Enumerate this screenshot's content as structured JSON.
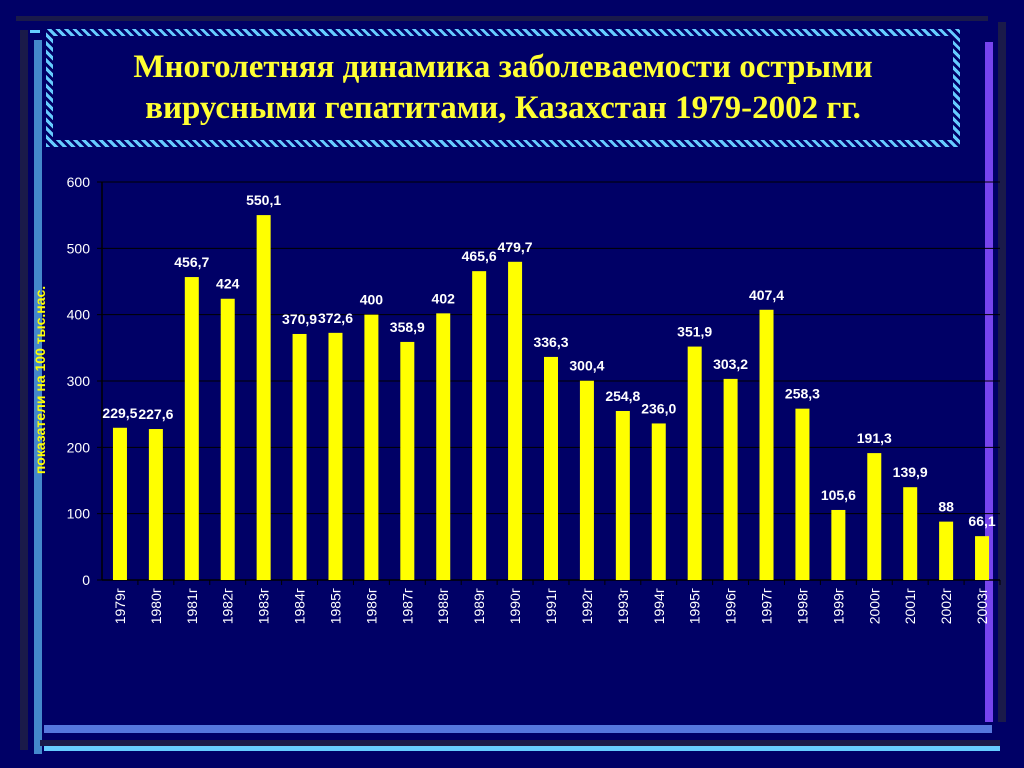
{
  "chart_data": {
    "type": "bar",
    "title": "Многолетняя динамика заболеваемости острыми вирусными гепатитами, Казахстан 1979-2002 гг.",
    "xlabel": "",
    "ylabel": "показатели на 100 тыс.нас.",
    "ylim": [
      0,
      600
    ],
    "yticks": [
      "0",
      "100",
      "200",
      "300",
      "400",
      "500",
      "600"
    ],
    "grid": true,
    "categories": [
      "1979г",
      "1980г",
      "1981г",
      "1982г",
      "1983г",
      "1984г",
      "1985г",
      "1986г",
      "1987г",
      "1988г",
      "1989г",
      "1990г",
      "1991г",
      "1992г",
      "1993г",
      "1994г",
      "1995г",
      "1996г",
      "1997г",
      "1998г",
      "1999г",
      "2000г",
      "2001г",
      "2002г",
      "2003г"
    ],
    "values": [
      229.5,
      227.6,
      456.7,
      424,
      550.1,
      370.9,
      372.6,
      400,
      358.9,
      402,
      465.6,
      479.7,
      336.3,
      300.4,
      254.8,
      236.0,
      351.9,
      303.2,
      407.4,
      258.3,
      105.6,
      191.3,
      139.9,
      88,
      66.1
    ],
    "labels": [
      "229,5",
      "227,6",
      "456,7",
      "424",
      "550,1",
      "370,9",
      "372,6",
      "400",
      "358,9",
      "402",
      "465,6",
      "479,7",
      "336,3",
      "300,4",
      "254,8",
      "236,0",
      "351,9",
      "303,2",
      "407,4",
      "258,3",
      "105,6",
      "191,3",
      "139,9",
      "88",
      "66,1"
    ],
    "colors": {
      "bar": "#FFFF00",
      "text": "#FFFFFF",
      "axis": "#000000",
      "background": "#000066",
      "title": "#FFFF33"
    }
  }
}
